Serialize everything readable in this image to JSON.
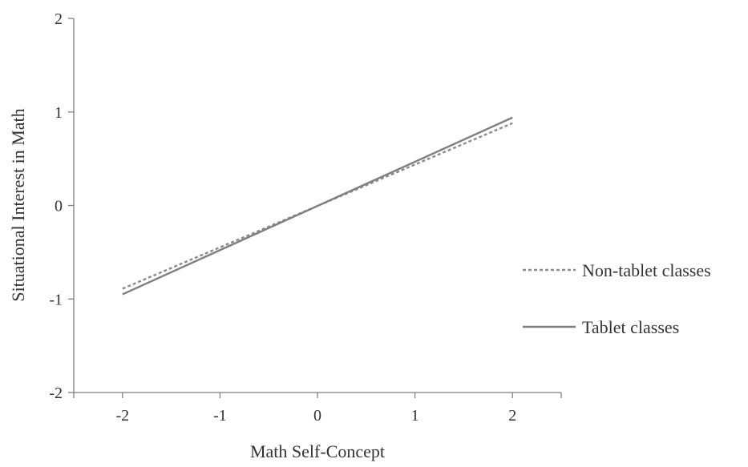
{
  "chart_data": {
    "type": "line",
    "title": "",
    "xlabel": "Math Self-Concept",
    "ylabel": "Situational Interest in Math",
    "xlim": [
      -2.5,
      2.5
    ],
    "ylim": [
      -2,
      2
    ],
    "x_ticks": [
      "-2",
      "-1",
      "0",
      "1",
      "2"
    ],
    "y_ticks": [
      "2",
      "1",
      "0",
      "-1",
      "-2"
    ],
    "grid": false,
    "legend_position": "right",
    "series": [
      {
        "name": "Non-tablet classes",
        "style": "dashed",
        "color": "#8c8c8c",
        "x": [
          -2,
          2
        ],
        "y": [
          -0.89,
          0.88
        ]
      },
      {
        "name": "Tablet classes",
        "style": "solid",
        "color": "#7f7f7f",
        "x": [
          -2,
          2
        ],
        "y": [
          -0.95,
          0.94
        ]
      }
    ]
  }
}
